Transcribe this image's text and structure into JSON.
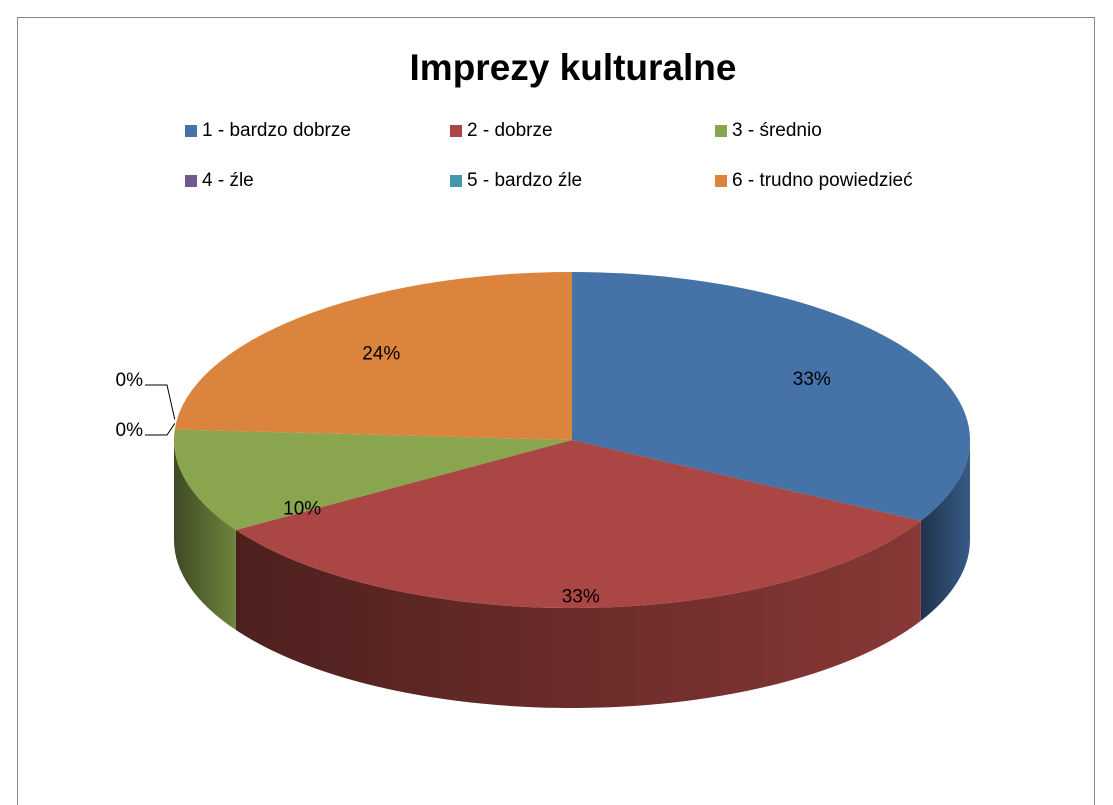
{
  "chart_data": {
    "type": "pie",
    "title": "Imprezy kulturalne",
    "categories": [
      "1 - bardzo dobrze",
      "2 - dobrze",
      "3 - średnio",
      "4 - źle",
      "5 - bardzo źle",
      "6 - trudno powiedzieć"
    ],
    "values": [
      33,
      33,
      10,
      0,
      0,
      24
    ],
    "value_labels": [
      "33%",
      "33%",
      "10%",
      "0%",
      "0%",
      "24%"
    ],
    "colors": [
      "#4572a7",
      "#aa4643",
      "#89a54e",
      "#71588f",
      "#4198af",
      "#db843d"
    ],
    "legend": "top"
  }
}
